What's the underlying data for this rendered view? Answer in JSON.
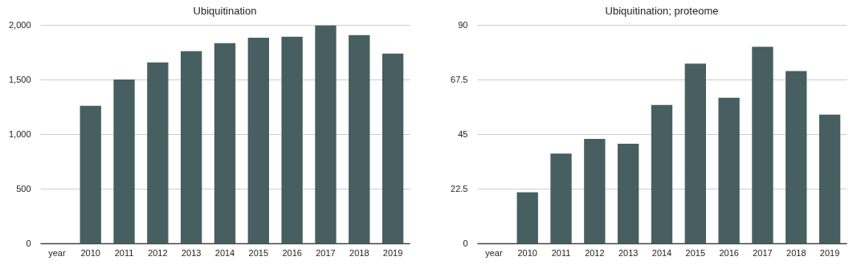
{
  "chart_data": [
    {
      "type": "bar",
      "title": "Ubiquitination",
      "categories": [
        "year",
        "2010",
        "2011",
        "2012",
        "2013",
        "2014",
        "2015",
        "2016",
        "2017",
        "2018",
        "2019"
      ],
      "series": [
        {
          "color": "#485f61",
          "values": [
            null,
            1260,
            1500,
            1656,
            1760,
            1833,
            1882,
            1892,
            1995,
            1907,
            1737
          ]
        }
      ],
      "ylim": [
        0,
        2000
      ],
      "yticks": [
        0,
        500,
        {
          "value": 1000,
          "label": "1,000"
        },
        {
          "value": 1500,
          "label": "1,500"
        },
        {
          "value": 2000,
          "label": "2,000"
        }
      ],
      "grid": "y"
    },
    {
      "type": "bar",
      "title": "Ubiquitination; proteome",
      "categories": [
        "year",
        "2010",
        "2011",
        "2012",
        "2013",
        "2014",
        "2015",
        "2016",
        "2017",
        "2018",
        "2019"
      ],
      "series": [
        {
          "color": "#485f61",
          "values": [
            null,
            21,
            37,
            43,
            41,
            57,
            74,
            60,
            81,
            71,
            53
          ]
        }
      ],
      "ylim": [
        0,
        90
      ],
      "yticks": [
        0,
        22.5,
        45,
        67.5,
        90
      ],
      "grid": "y"
    }
  ]
}
